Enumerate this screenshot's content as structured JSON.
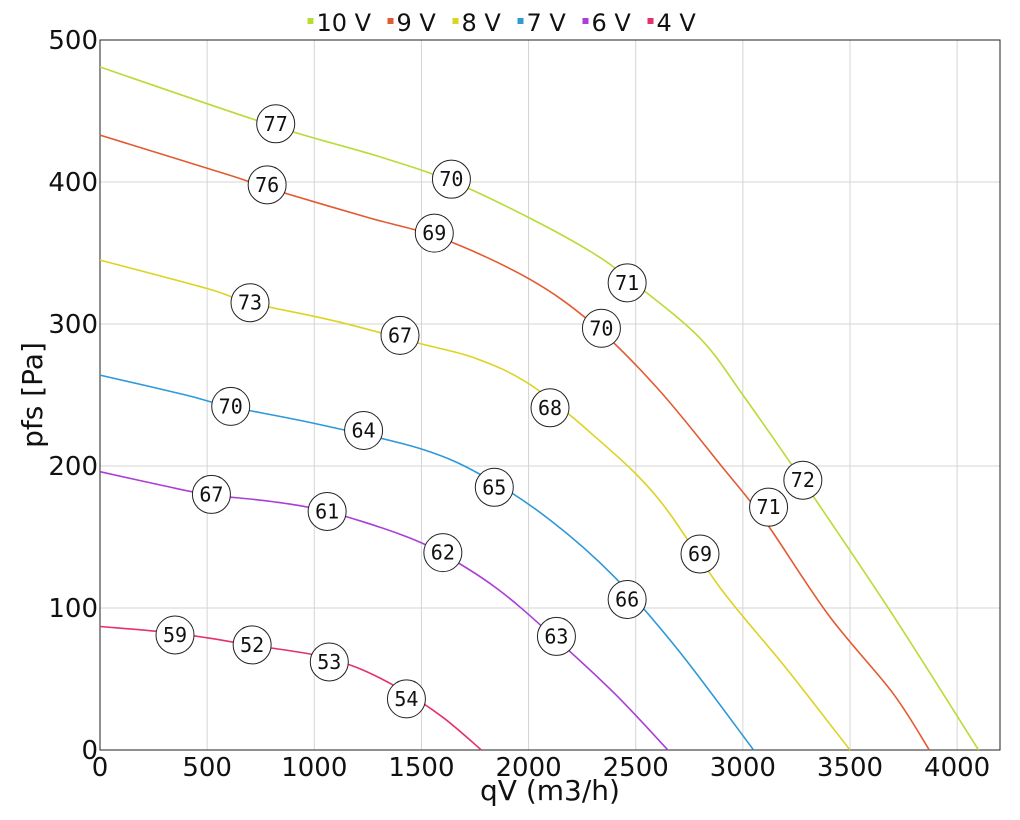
{
  "chart_data": {
    "type": "line",
    "xlabel": "qV (m3/h)",
    "ylabel": "pfs [Pa]",
    "xlim": [
      0,
      4200
    ],
    "ylim": [
      0,
      500
    ],
    "xticks": [
      0,
      500,
      1000,
      1500,
      2000,
      2500,
      3000,
      3500,
      4000
    ],
    "yticks": [
      0,
      100,
      200,
      300,
      400,
      500
    ],
    "xtick_labels": [
      "0",
      "500",
      "1000",
      "1500",
      "2000",
      "2500",
      "3000",
      "3500",
      "4000"
    ],
    "ytick_labels": [
      "0",
      "100",
      "200",
      "300",
      "400",
      "500"
    ],
    "grid": true,
    "legend_position": "top-center",
    "series": [
      {
        "name": "10 V",
        "color": "#b7dc35",
        "points": [
          [
            0,
            481
          ],
          [
            800,
            440
          ],
          [
            1300,
            418
          ],
          [
            1650,
            400
          ],
          [
            2000,
            375
          ],
          [
            2300,
            350
          ],
          [
            2500,
            328
          ],
          [
            2800,
            290
          ],
          [
            3000,
            250
          ],
          [
            3300,
            185
          ],
          [
            3700,
            95
          ],
          [
            4100,
            0
          ]
        ],
        "labels": [
          {
            "x": 820,
            "y": 441,
            "text": "77"
          },
          {
            "x": 1640,
            "y": 402,
            "text": "70"
          },
          {
            "x": 2460,
            "y": 329,
            "text": "71"
          },
          {
            "x": 3280,
            "y": 190,
            "text": "72"
          }
        ]
      },
      {
        "name": "9 V",
        "color": "#e35a30",
        "points": [
          [
            0,
            433
          ],
          [
            600,
            405
          ],
          [
            800,
            395
          ],
          [
            1250,
            375
          ],
          [
            1600,
            360
          ],
          [
            2000,
            332
          ],
          [
            2300,
            300
          ],
          [
            2600,
            255
          ],
          [
            2900,
            200
          ],
          [
            3100,
            162
          ],
          [
            3400,
            95
          ],
          [
            3700,
            40
          ],
          [
            3870,
            0
          ]
        ],
        "labels": [
          {
            "x": 780,
            "y": 398,
            "text": "76"
          },
          {
            "x": 1560,
            "y": 364,
            "text": "69"
          },
          {
            "x": 2340,
            "y": 297,
            "text": "70"
          },
          {
            "x": 3120,
            "y": 171,
            "text": "71"
          }
        ]
      },
      {
        "name": "8 V",
        "color": "#ddd321",
        "points": [
          [
            0,
            345
          ],
          [
            500,
            325
          ],
          [
            700,
            315
          ],
          [
            1100,
            302
          ],
          [
            1500,
            286
          ],
          [
            1750,
            276
          ],
          [
            2000,
            258
          ],
          [
            2300,
            222
          ],
          [
            2600,
            178
          ],
          [
            2900,
            113
          ],
          [
            3200,
            58
          ],
          [
            3500,
            0
          ]
        ],
        "labels": [
          {
            "x": 700,
            "y": 315,
            "text": "73"
          },
          {
            "x": 1400,
            "y": 292,
            "text": "67"
          },
          {
            "x": 2100,
            "y": 241,
            "text": "68"
          },
          {
            "x": 2800,
            "y": 138,
            "text": "69"
          }
        ]
      },
      {
        "name": "7 V",
        "color": "#2d98da",
        "points": [
          [
            0,
            264
          ],
          [
            400,
            250
          ],
          [
            600,
            242
          ],
          [
            1000,
            230
          ],
          [
            1500,
            212
          ],
          [
            1800,
            192
          ],
          [
            2100,
            162
          ],
          [
            2400,
            122
          ],
          [
            2700,
            70
          ],
          [
            3050,
            0
          ]
        ],
        "labels": [
          {
            "x": 610,
            "y": 242,
            "text": "70"
          },
          {
            "x": 1230,
            "y": 225,
            "text": "64"
          },
          {
            "x": 1840,
            "y": 185,
            "text": "65"
          },
          {
            "x": 2460,
            "y": 106,
            "text": "66"
          }
        ]
      },
      {
        "name": "6 V",
        "color": "#a93ed8",
        "points": [
          [
            0,
            196
          ],
          [
            300,
            186
          ],
          [
            500,
            180
          ],
          [
            800,
            175
          ],
          [
            1060,
            168
          ],
          [
            1400,
            152
          ],
          [
            1600,
            138
          ],
          [
            1850,
            114
          ],
          [
            2100,
            82
          ],
          [
            2400,
            40
          ],
          [
            2650,
            0
          ]
        ],
        "labels": [
          {
            "x": 520,
            "y": 180,
            "text": "67"
          },
          {
            "x": 1060,
            "y": 168,
            "text": "61"
          },
          {
            "x": 1600,
            "y": 139,
            "text": "62"
          },
          {
            "x": 2130,
            "y": 80,
            "text": "63"
          }
        ]
      },
      {
        "name": "4 V",
        "color": "#e3306f",
        "points": [
          [
            0,
            87
          ],
          [
            300,
            83
          ],
          [
            500,
            79
          ],
          [
            700,
            74
          ],
          [
            1000,
            67
          ],
          [
            1200,
            58
          ],
          [
            1400,
            43
          ],
          [
            1600,
            23
          ],
          [
            1780,
            0
          ]
        ],
        "labels": [
          {
            "x": 350,
            "y": 81,
            "text": "59"
          },
          {
            "x": 710,
            "y": 74,
            "text": "52"
          },
          {
            "x": 1070,
            "y": 62,
            "text": "53"
          },
          {
            "x": 1430,
            "y": 36,
            "text": "54"
          }
        ]
      }
    ]
  }
}
